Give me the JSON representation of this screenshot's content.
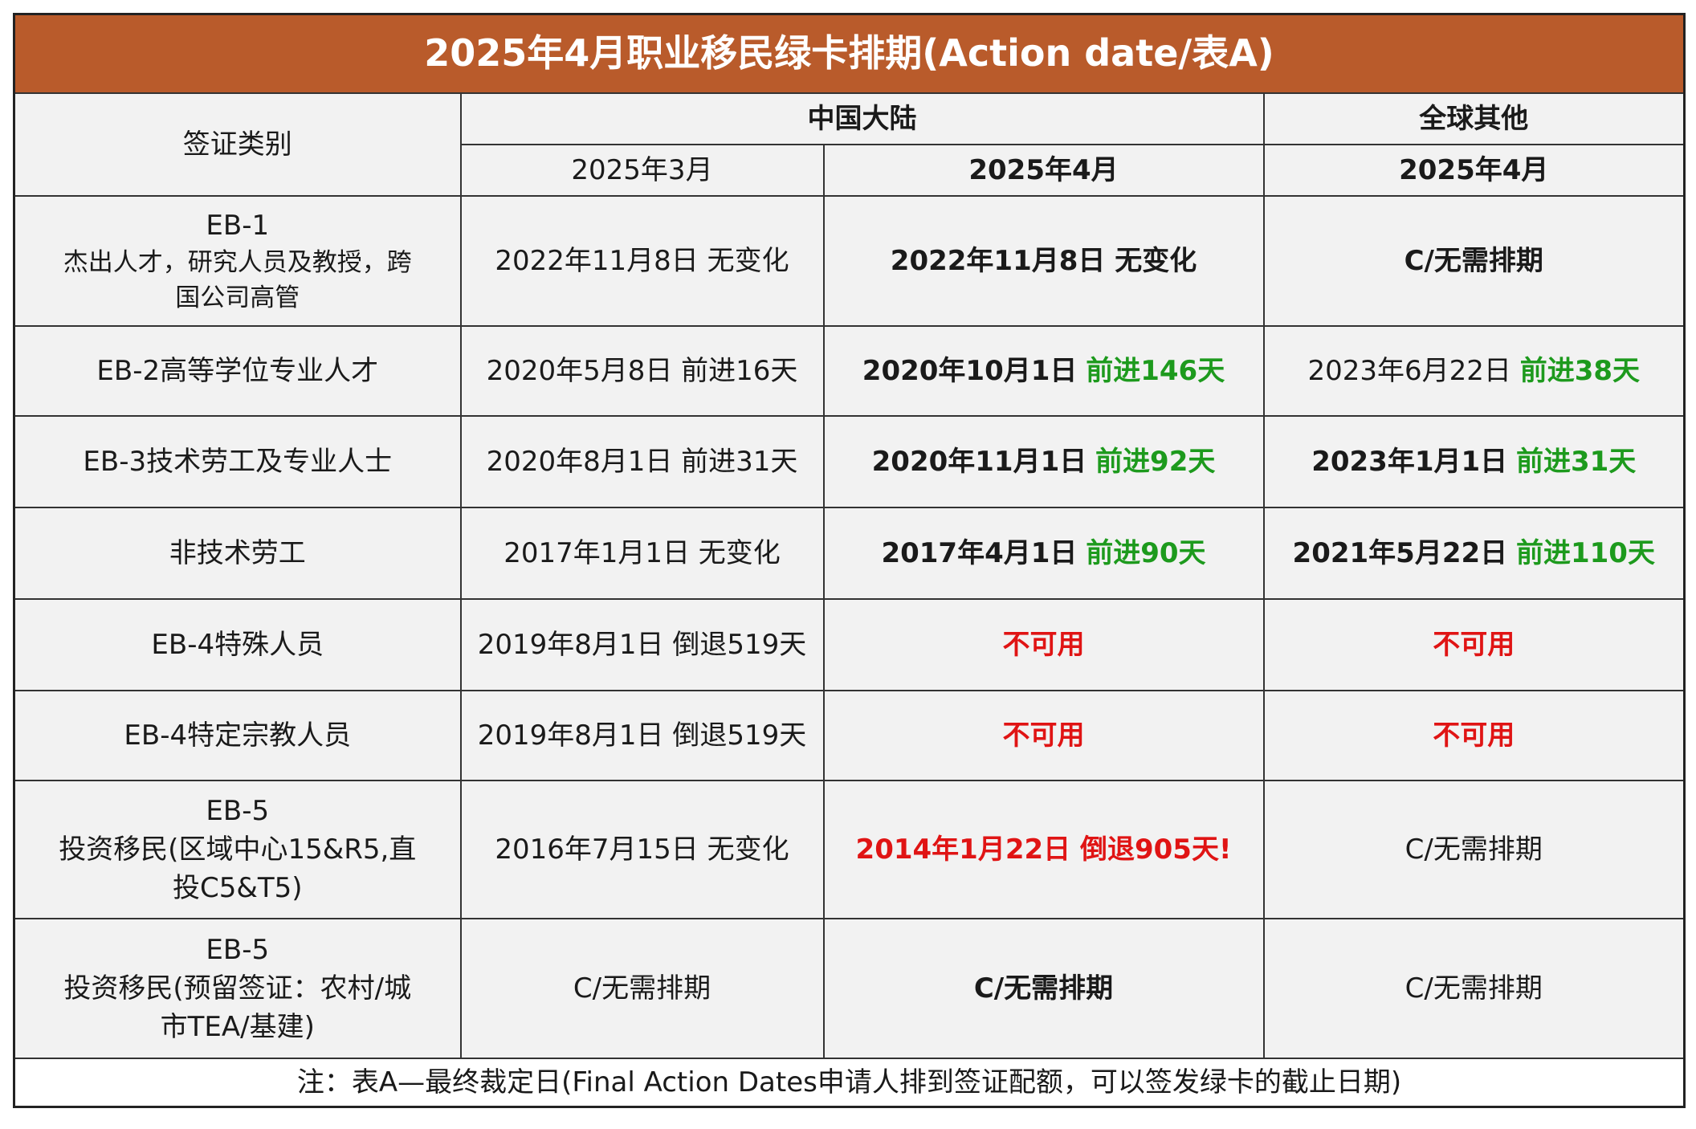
{
  "title": "2025年4月职业移民绿卡排期(Action date/表A)",
  "header": {
    "category_label": "签证类别",
    "region_china": "中国大陆",
    "region_rest": "全球其他",
    "col_cn_prev": "2025年3月",
    "col_cn_curr": "2025年4月",
    "col_row_curr": "2025年4月"
  },
  "rows": [
    {
      "category": [
        "EB-1",
        "杰出人才，研究人员及教授，跨",
        "国公司高管"
      ],
      "cn_prev": "2022年11月8日 无变化",
      "cn_curr_date": "2022年11月8日 无变化",
      "cn_curr_change": "",
      "row_date": "C/无需排期",
      "row_change": ""
    },
    {
      "category": [
        "EB-2高等学位专业人才"
      ],
      "cn_prev": "2020年5月8日 前进16天",
      "cn_curr_date": "2020年10月1日",
      "cn_curr_change": "前进146天",
      "row_date": "2023年6月22日",
      "row_change": "前进38天"
    },
    {
      "category": [
        "EB-3技术劳工及专业人士"
      ],
      "cn_prev": "2020年8月1日 前进31天",
      "cn_curr_date": "2020年11月1日",
      "cn_curr_change": "前进92天",
      "row_date": "2023年1月1日",
      "row_change": "前进31天"
    },
    {
      "category": [
        "非技术劳工"
      ],
      "cn_prev": "2017年1月1日 无变化",
      "cn_curr_date": "2017年4月1日",
      "cn_curr_change": "前进90天",
      "row_date": "2021年5月22日",
      "row_change": "前进110天"
    },
    {
      "category": [
        "EB-4特殊人员"
      ],
      "cn_prev": "2019年8月1日 倒退519天",
      "cn_curr_date": "不可用",
      "cn_curr_change": "",
      "row_date": "不可用",
      "row_change": ""
    },
    {
      "category": [
        "EB-4特定宗教人员"
      ],
      "cn_prev": "2019年8月1日 倒退519天",
      "cn_curr_date": "不可用",
      "cn_curr_change": "",
      "row_date": "不可用",
      "row_change": ""
    },
    {
      "category": [
        "EB-5",
        "投资移民(区域中心15&R5,直",
        "投C5&T5)"
      ],
      "cn_prev": "2016年7月15日 无变化",
      "cn_curr_date": "2014年1月22日 倒退905天!",
      "cn_curr_change": "",
      "row_date": "C/无需排期",
      "row_change": ""
    },
    {
      "category": [
        "EB-5",
        "投资移民(预留签证：农村/城",
        "市TEA/基建)"
      ],
      "cn_prev": "C/无需排期",
      "cn_curr_date": "C/无需排期",
      "cn_curr_change": "",
      "row_date": "C/无需排期",
      "row_change": ""
    }
  ],
  "note": "注：表A—最终裁定日(Final Action Dates申请人排到签证配额，可以签发绿卡的截止日期)",
  "colors": {
    "title_bg": "#b95b2b",
    "advance": "#1d9a1d",
    "unavailable": "#e01414"
  }
}
